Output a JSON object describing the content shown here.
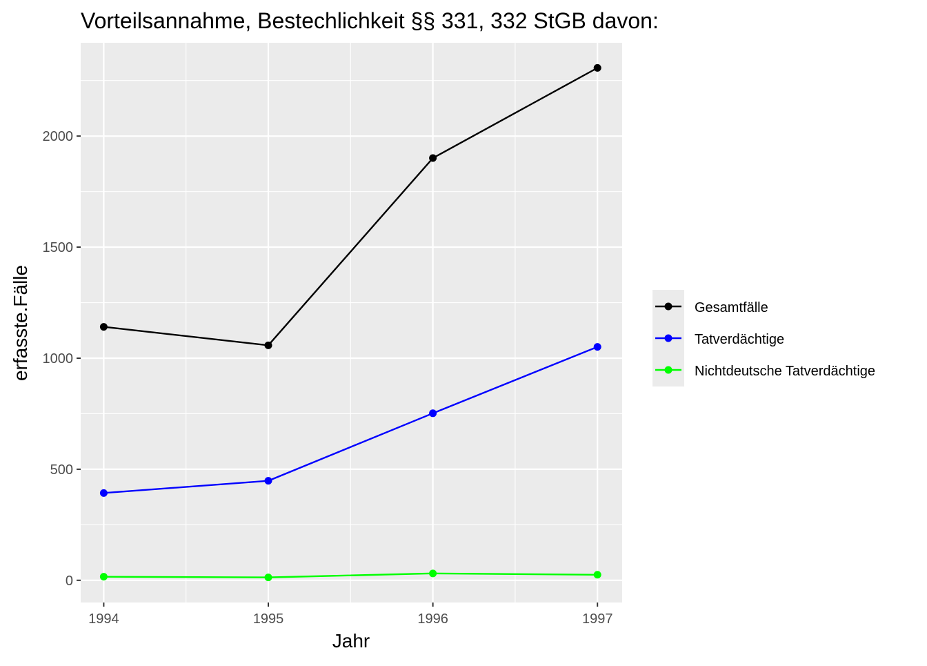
{
  "chart_data": {
    "type": "line",
    "title": "Vorteilsannahme, Bestechlichkeit §§ 331, 332 StGB davon:",
    "xlabel": "Jahr",
    "ylabel": "erfasste.Fälle",
    "x": [
      1994,
      1995,
      1996,
      1997
    ],
    "x_ticks": [
      "1994",
      "1995",
      "1996",
      "1997"
    ],
    "y_ticks": [
      0,
      500,
      1000,
      1500,
      2000
    ],
    "y_tick_labels": [
      "0",
      "500",
      "1000",
      "1500",
      "2000"
    ],
    "xlim": [
      1993.86,
      1997.15
    ],
    "ylim": [
      -100,
      2420
    ],
    "grid": true,
    "legend_placement": "right",
    "series": [
      {
        "name": "Gesamtfälle",
        "color": "#000000",
        "values": [
          1141,
          1058,
          1901,
          2307
        ]
      },
      {
        "name": "Tatverdächtige",
        "color": "#0000ff",
        "values": [
          393,
          448,
          752,
          1051
        ]
      },
      {
        "name": "Nichtdeutsche Tatverdächtige",
        "color": "#00ff00",
        "values": [
          16,
          13,
          31,
          25
        ]
      }
    ]
  }
}
